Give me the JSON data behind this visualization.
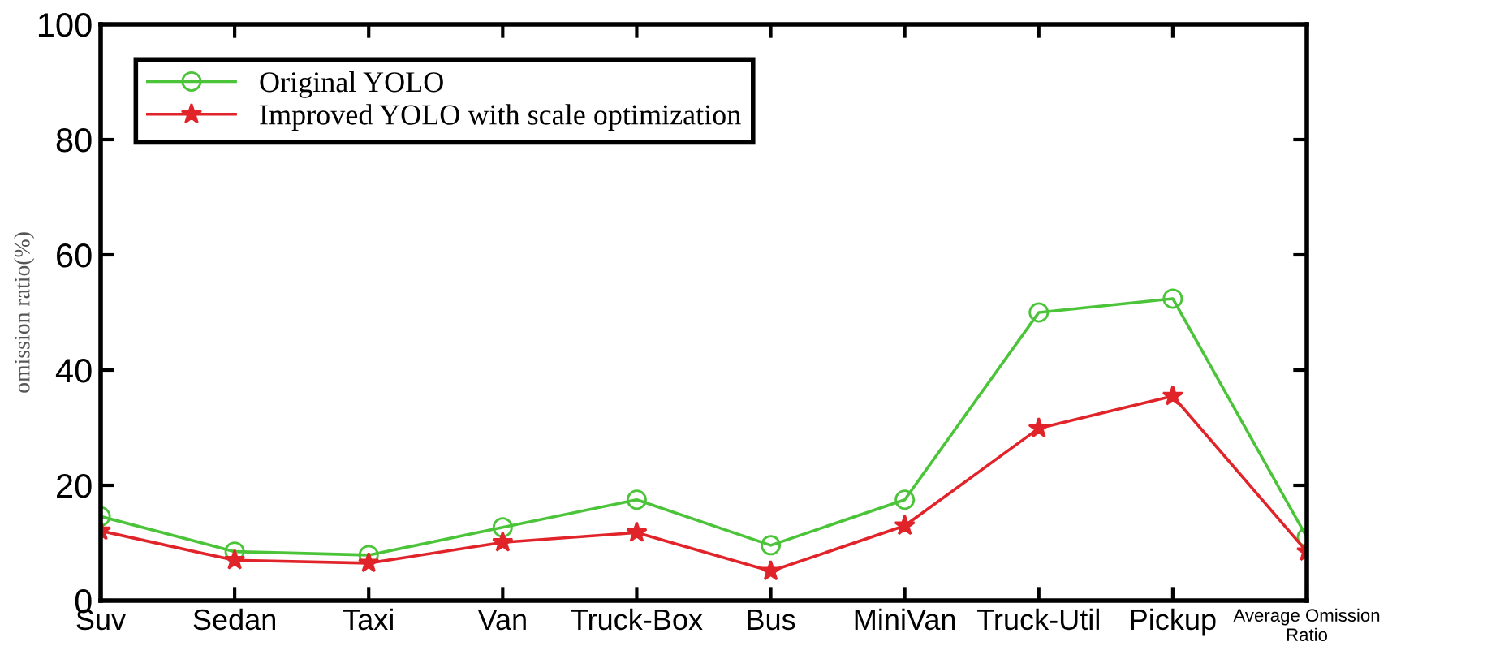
{
  "chart_data": {
    "type": "line",
    "ylabel": "omission ratio(%)",
    "categories": [
      "Suv",
      "Sedan",
      "Taxi",
      "Van",
      "Truck-Box",
      "Bus",
      "MiniVan",
      "Truck-Util",
      "Pickup",
      "Average Omission\nRatio"
    ],
    "series": [
      {
        "name": "Original YOLO",
        "color": "#4cc43a",
        "marker": "circle",
        "values": [
          14.6,
          8.5,
          7.9,
          12.7,
          17.5,
          9.6,
          17.5,
          50,
          52.4,
          11
        ]
      },
      {
        "name": "Improved YOLO with scale optimization",
        "color": "#e0242a",
        "marker": "star",
        "values": [
          12.1,
          7,
          6.5,
          10.1,
          11.8,
          5.1,
          13,
          29.9,
          35.5,
          8.5
        ]
      }
    ],
    "ylim": [
      0,
      100
    ],
    "yticks": [
      0,
      20,
      40,
      60,
      80,
      100
    ],
    "grid": false,
    "legend": "top left",
    "line_style": "solid"
  }
}
